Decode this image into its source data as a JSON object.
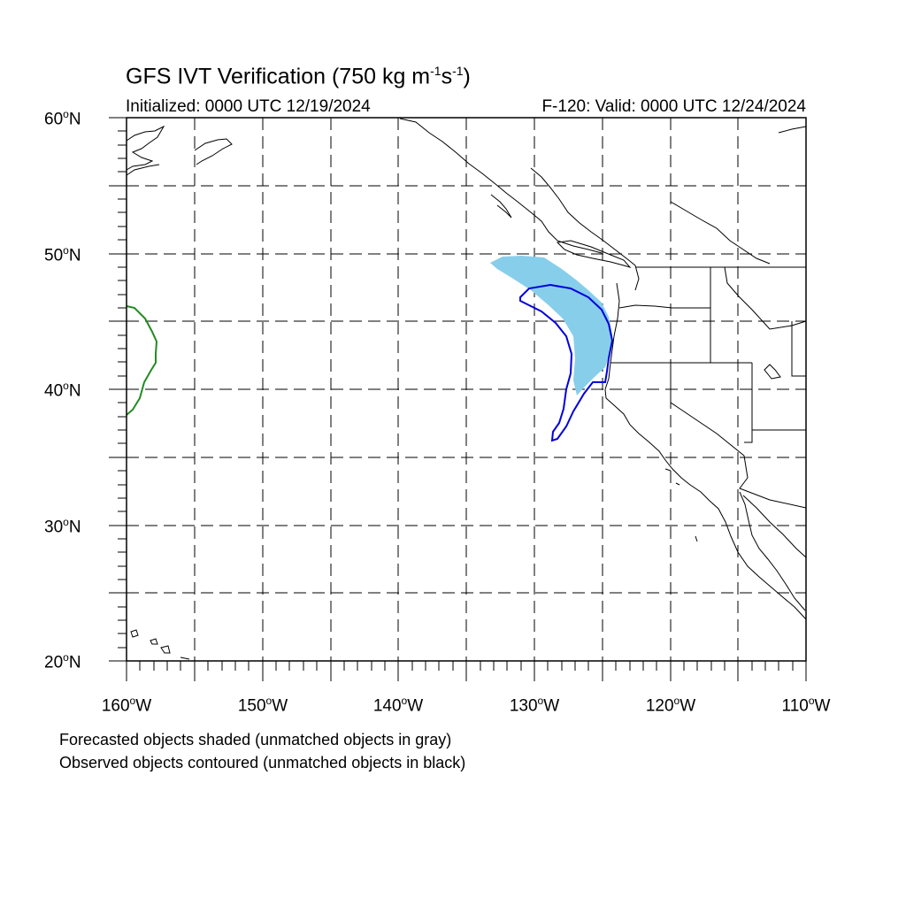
{
  "title": {
    "main": "GFS IVT Verification (750 kg m",
    "exp1": "-1",
    "mid": "s",
    "exp2": "-1",
    "end": ")"
  },
  "initialized": "Initialized: 0000 UTC 12/19/2024",
  "valid": "F-120: Valid: 0000 UTC 12/24/2024",
  "lat_labels": [
    {
      "num": "60",
      "deg": "o",
      "hem": "N"
    },
    {
      "num": "50",
      "deg": "o",
      "hem": "N"
    },
    {
      "num": "40",
      "deg": "o",
      "hem": "N"
    },
    {
      "num": "30",
      "deg": "o",
      "hem": "N"
    },
    {
      "num": "20",
      "deg": "o",
      "hem": "N"
    }
  ],
  "lon_labels": [
    {
      "num": "160",
      "deg": "o",
      "hem": "W"
    },
    {
      "num": "150",
      "deg": "o",
      "hem": "W"
    },
    {
      "num": "140",
      "deg": "o",
      "hem": "W"
    },
    {
      "num": "130",
      "deg": "o",
      "hem": "W"
    },
    {
      "num": "120",
      "deg": "o",
      "hem": "W"
    },
    {
      "num": "110",
      "deg": "o",
      "hem": "W"
    }
  ],
  "notes": {
    "forecast": "Forecasted objects shaded (unmatched objects in gray)",
    "observed": "Observed objects contoured (unmatched objects in black)"
  },
  "map": {
    "lon_range": [
      -160,
      -110
    ],
    "lat_range": [
      20,
      60
    ],
    "grid_step_deg": 5,
    "grid_style": "dashed",
    "colors": {
      "forecast_fill": "#87ceeb",
      "observed_contour": "#0000dd",
      "unmatched_contour": "#228b22",
      "coast": "#000000"
    }
  }
}
